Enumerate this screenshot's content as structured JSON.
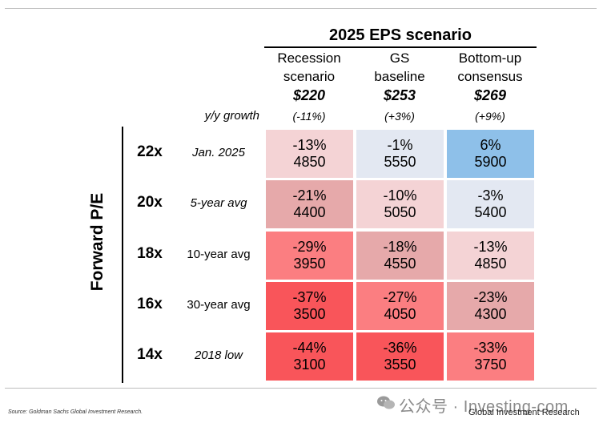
{
  "chart_data": {
    "type": "table",
    "title": "2025 EPS scenario",
    "columns": [
      {
        "name_line1": "Recession",
        "name_line2": "scenario",
        "eps": "$220",
        "growth": "(-11%)"
      },
      {
        "name_line1": "GS",
        "name_line2": "baseline",
        "eps": "$253",
        "growth": "(+3%)"
      },
      {
        "name_line1": "Bottom-up",
        "name_line2": "consensus",
        "eps": "$269",
        "growth": "(+9%)"
      }
    ],
    "growth_label": "y/y growth",
    "row_axis_label": "Forward P/E",
    "rows": [
      {
        "pe": "22x",
        "desc": "Jan. 2025",
        "italic": true,
        "cells": [
          {
            "pct": "-13%",
            "level": "4850",
            "color": "#f4d3d5"
          },
          {
            "pct": "-1%",
            "level": "5550",
            "color": "#e3e8f2"
          },
          {
            "pct": "6%",
            "level": "5900",
            "color": "#8ec0e9"
          }
        ]
      },
      {
        "pe": "20x",
        "desc": "5-year avg",
        "italic": true,
        "cells": [
          {
            "pct": "-21%",
            "level": "4400",
            "color": "#e6a9aa"
          },
          {
            "pct": "-10%",
            "level": "5050",
            "color": "#f4d3d5"
          },
          {
            "pct": "-3%",
            "level": "5400",
            "color": "#e3e8f2"
          }
        ]
      },
      {
        "pe": "18x",
        "desc": "10-year avg",
        "italic": false,
        "cells": [
          {
            "pct": "-29%",
            "level": "3950",
            "color": "#fb7e81"
          },
          {
            "pct": "-18%",
            "level": "4550",
            "color": "#e6a9aa"
          },
          {
            "pct": "-13%",
            "level": "4850",
            "color": "#f4d3d5"
          }
        ]
      },
      {
        "pe": "16x",
        "desc": "30-year avg",
        "italic": false,
        "cells": [
          {
            "pct": "-37%",
            "level": "3500",
            "color": "#f9555a"
          },
          {
            "pct": "-27%",
            "level": "4050",
            "color": "#fb7e81"
          },
          {
            "pct": "-23%",
            "level": "4300",
            "color": "#e6a9aa"
          }
        ]
      },
      {
        "pe": "14x",
        "desc": "2018 low",
        "italic": true,
        "cells": [
          {
            "pct": "-44%",
            "level": "3100",
            "color": "#f9555a"
          },
          {
            "pct": "-36%",
            "level": "3550",
            "color": "#f9555a"
          },
          {
            "pct": "-33%",
            "level": "3750",
            "color": "#fb7e81"
          }
        ]
      }
    ]
  },
  "footer": {
    "source": "Source: Goldman Sachs Global Investment Research.",
    "watermark": "公众号 · Investing-com",
    "brand": "Global Investment Research"
  },
  "icons": {
    "watermark_icon": "wechat-icon"
  }
}
